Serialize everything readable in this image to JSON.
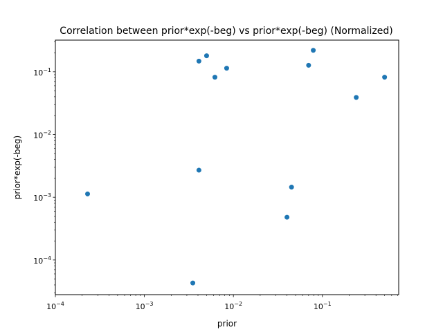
{
  "chart_data": {
    "type": "scatter",
    "title": "Correlation between prior*exp(-beg) vs prior*exp(-beg) (Normalized)",
    "xlabel": "prior",
    "ylabel": "prior*exp(-beg)",
    "xscale": "log",
    "yscale": "log",
    "xlim": [
      0.0001,
      0.72
    ],
    "ylim": [
      2.8e-05,
      0.32
    ],
    "grid": false,
    "marker_color": "#1f77b4",
    "x_ticks": [
      {
        "base": "10",
        "exp": "−4"
      },
      {
        "base": "10",
        "exp": "−3"
      },
      {
        "base": "10",
        "exp": "−2"
      },
      {
        "base": "10",
        "exp": "−1"
      }
    ],
    "y_ticks": [
      {
        "base": "10",
        "exp": "−4"
      },
      {
        "base": "10",
        "exp": "−3"
      },
      {
        "base": "10",
        "exp": "−2"
      },
      {
        "base": "10",
        "exp": "−1"
      }
    ],
    "points": [
      {
        "x": 0.00023,
        "y": 0.00113
      },
      {
        "x": 0.0035,
        "y": 4.3e-05
      },
      {
        "x": 0.0041,
        "y": 0.0027
      },
      {
        "x": 0.0041,
        "y": 0.148
      },
      {
        "x": 0.005,
        "y": 0.18
      },
      {
        "x": 0.0062,
        "y": 0.082
      },
      {
        "x": 0.0084,
        "y": 0.114
      },
      {
        "x": 0.04,
        "y": 0.00048
      },
      {
        "x": 0.045,
        "y": 0.00145
      },
      {
        "x": 0.07,
        "y": 0.127
      },
      {
        "x": 0.079,
        "y": 0.22
      },
      {
        "x": 0.24,
        "y": 0.039
      },
      {
        "x": 0.5,
        "y": 0.082
      }
    ]
  }
}
